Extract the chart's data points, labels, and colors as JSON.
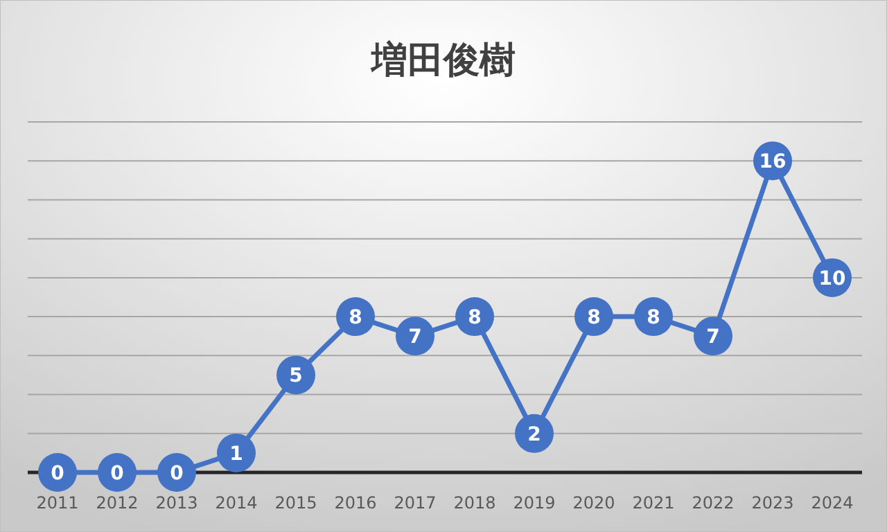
{
  "chart_data": {
    "type": "line",
    "title": "増田俊樹",
    "categories": [
      "2011",
      "2012",
      "2013",
      "2014",
      "2015",
      "2016",
      "2017",
      "2018",
      "2019",
      "2020",
      "2021",
      "2022",
      "2023",
      "2024"
    ],
    "values": [
      0,
      0,
      0,
      1,
      5,
      8,
      7,
      8,
      2,
      8,
      8,
      7,
      16,
      10
    ],
    "color": "#4472c4",
    "ylim": [
      0,
      18
    ],
    "yticks": [
      {
        "value": 0,
        "label": null
      },
      {
        "value": 2,
        "label": null
      },
      {
        "value": 4,
        "label": null
      },
      {
        "value": 6,
        "label": null
      },
      {
        "value": 8,
        "label": null
      },
      {
        "value": 10,
        "label": null
      },
      {
        "value": 12,
        "label": null
      },
      {
        "value": 14,
        "label": null
      },
      {
        "value": 16,
        "label": null
      },
      {
        "value": 18,
        "label": null
      }
    ],
    "grid": "y",
    "tick_labels": "x",
    "marker": "circle",
    "data_labels": true
  }
}
